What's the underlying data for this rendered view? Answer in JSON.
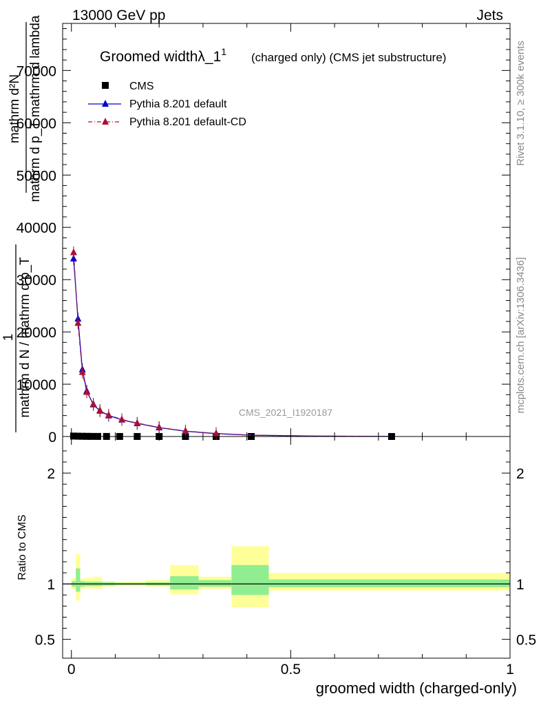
{
  "header": {
    "energy_label": "13000 GeV pp",
    "process_label": "Jets"
  },
  "side_labels": {
    "rivet": "Rivet 3.1.10, ≥ 300k events",
    "mcplots": "mcplots.cern.ch [arXiv:1306.3436]"
  },
  "watermark": "CMS_2021_I1920187",
  "colors": {
    "cms": "#000000",
    "pythia_default": "#0000cc",
    "pythia_cd": "#aa1133",
    "band_inner": "#90ee90",
    "band_outer": "#ffff99"
  },
  "chart_data": [
    {
      "type": "line",
      "title": "Groomed widthλ_1",
      "title_sup": "1",
      "title_suffix": "(charged only) (CMS jet substructure)",
      "ylabel_top": "mathrm d²N",
      "ylabel_bottom": "mathrm d p_T mathrm d lambda",
      "ylabel_one": "1",
      "ylabel_frac": "mathrm d N / mathrm d p_T",
      "xlim": [
        -0.02,
        1.0
      ],
      "ylim": [
        0,
        79000
      ],
      "y_ticks": [
        0,
        10000,
        20000,
        30000,
        40000,
        50000,
        60000,
        70000
      ],
      "y_tick_labels": [
        "0",
        "10000",
        "20000",
        "30000",
        "40000",
        "50000",
        "60000",
        "70000"
      ],
      "legend_placement": "top-left",
      "series": [
        {
          "name": "CMS",
          "marker": "square",
          "x": [
            0.005,
            0.015,
            0.025,
            0.035,
            0.045,
            0.06,
            0.08,
            0.11,
            0.15,
            0.2,
            0.26,
            0.33,
            0.41,
            0.73
          ],
          "y": [
            80,
            60,
            40,
            30,
            20,
            15,
            12,
            8,
            6,
            4,
            3,
            2,
            1,
            0
          ]
        },
        {
          "name": "Pythia 8.201 default",
          "marker": "triangle",
          "line": "solid",
          "x": [
            0.005,
            0.015,
            0.025,
            0.035,
            0.05,
            0.065,
            0.085,
            0.115,
            0.15,
            0.2,
            0.26,
            0.33,
            0.41,
            0.55,
            0.73
          ],
          "y": [
            34000,
            22500,
            12800,
            8700,
            6100,
            4900,
            4000,
            3200,
            2500,
            1700,
            1000,
            550,
            250,
            80,
            10
          ]
        },
        {
          "name": "Pythia 8.201 default-CD",
          "marker": "triangle",
          "line": "dash-dot",
          "x": [
            0.005,
            0.015,
            0.025,
            0.035,
            0.05,
            0.065,
            0.085,
            0.115,
            0.15,
            0.2,
            0.26,
            0.33,
            0.41,
            0.55,
            0.73
          ],
          "y": [
            35200,
            21700,
            12300,
            8500,
            6200,
            5000,
            4100,
            3250,
            2550,
            1750,
            1050,
            580,
            270,
            90,
            12
          ]
        }
      ]
    },
    {
      "type": "area",
      "ylabel": "Ratio to CMS",
      "xlabel": "groomed width (charged-only)",
      "xlim": [
        -0.02,
        1.0
      ],
      "ylim": [
        0.33,
        2.33
      ],
      "x_ticks": [
        0,
        0.5,
        1
      ],
      "x_tick_labels": [
        "0",
        "0.5",
        "1"
      ],
      "y_ticks": [
        0.5,
        1,
        2
      ],
      "y_tick_labels": [
        "0.5",
        "1",
        "2"
      ],
      "bands": [
        {
          "x0": 0.0,
          "x1": 0.01,
          "inner": [
            0.975,
            1.025
          ],
          "outer": [
            0.95,
            1.05
          ]
        },
        {
          "x0": 0.01,
          "x1": 0.02,
          "inner": [
            0.93,
            1.14
          ],
          "outer": [
            0.85,
            1.27
          ]
        },
        {
          "x0": 0.02,
          "x1": 0.03,
          "inner": [
            0.975,
            1.025
          ],
          "outer": [
            0.955,
            1.045
          ]
        },
        {
          "x0": 0.03,
          "x1": 0.05,
          "inner": [
            0.98,
            1.02
          ],
          "outer": [
            0.96,
            1.055
          ]
        },
        {
          "x0": 0.05,
          "x1": 0.07,
          "inner": [
            0.98,
            1.02
          ],
          "outer": [
            0.955,
            1.065
          ]
        },
        {
          "x0": 0.07,
          "x1": 0.1,
          "inner": [
            0.985,
            1.015
          ],
          "outer": [
            0.975,
            1.025
          ]
        },
        {
          "x0": 0.1,
          "x1": 0.17,
          "inner": [
            0.99,
            1.01
          ],
          "outer": [
            0.98,
            1.02
          ]
        },
        {
          "x0": 0.17,
          "x1": 0.225,
          "inner": [
            0.985,
            1.015
          ],
          "outer": [
            0.975,
            1.035
          ]
        },
        {
          "x0": 0.225,
          "x1": 0.29,
          "inner": [
            0.95,
            1.07
          ],
          "outer": [
            0.905,
            1.17
          ]
        },
        {
          "x0": 0.29,
          "x1": 0.365,
          "inner": [
            0.975,
            1.035
          ],
          "outer": [
            0.955,
            1.065
          ]
        },
        {
          "x0": 0.365,
          "x1": 0.45,
          "inner": [
            0.9,
            1.17
          ],
          "outer": [
            0.79,
            1.34
          ]
        },
        {
          "x0": 0.45,
          "x1": 1.0,
          "inner": [
            0.97,
            1.04
          ],
          "outer": [
            0.94,
            1.1
          ]
        }
      ]
    }
  ]
}
